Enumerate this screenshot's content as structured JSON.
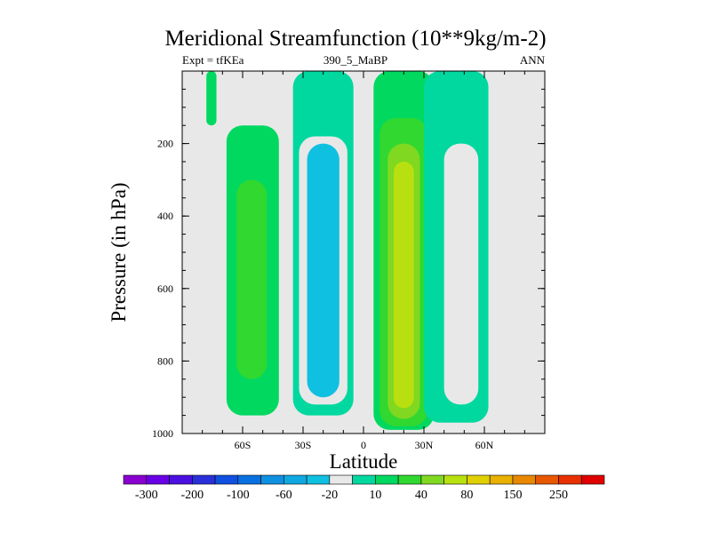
{
  "title": "Meridional Streamfunction (10**9kg/m-2)",
  "subtitle_left": "Expt = tfKEa",
  "subtitle_center": "390_5_MaBP",
  "subtitle_right": "ANN",
  "chart_data": {
    "type": "heatmap",
    "title": "Meridional Streamfunction (10**9kg/m-2)",
    "xlabel": "Latitude",
    "ylabel": "Pressure (in hPa)",
    "xlim": [
      -90,
      90
    ],
    "ylim": [
      1000,
      0
    ],
    "x_ticks": [
      {
        "value": -60,
        "label": "60S"
      },
      {
        "value": -30,
        "label": "30S"
      },
      {
        "value": 0,
        "label": "0"
      },
      {
        "value": 30,
        "label": "30N"
      },
      {
        "value": 60,
        "label": "60N"
      }
    ],
    "y_ticks": [
      {
        "value": 200,
        "label": "200"
      },
      {
        "value": 400,
        "label": "400"
      },
      {
        "value": 600,
        "label": "600"
      },
      {
        "value": 800,
        "label": "800"
      },
      {
        "value": 1000,
        "label": "1000"
      }
    ],
    "background_color": "#e8e8e8",
    "colorbar": {
      "levels": [
        "-300",
        "-250",
        "-200",
        "-150",
        "-100",
        "-80",
        "-60",
        "-40",
        "-20",
        "-10",
        "10",
        "20",
        "40",
        "60",
        "80",
        "100",
        "150",
        "200",
        "250",
        "300"
      ],
      "labels": [
        "-300",
        "-200",
        "-100",
        "-60",
        "-20",
        "10",
        "40",
        "80",
        "150",
        "250"
      ],
      "colors": [
        "#8a00d0",
        "#6a00e6",
        "#4a10e0",
        "#2a30d8",
        "#1050e0",
        "#0870e0",
        "#1090e0",
        "#10a8e0",
        "#10c0e0",
        "#e8e8e8",
        "#00d8a0",
        "#00d860",
        "#30d830",
        "#80d820",
        "#b8e010",
        "#e0d000",
        "#e8b000",
        "#e88800",
        "#e85800",
        "#e83000",
        "#e00000"
      ]
    },
    "regions": [
      {
        "name": "sh-polar-positive-upper",
        "band": "10",
        "lat": [
          -78,
          -73
        ],
        "p": [
          0,
          150
        ]
      },
      {
        "name": "sh-midlat-positive-cell",
        "band": "10",
        "lat": [
          -68,
          -42
        ],
        "p": [
          150,
          950
        ]
      },
      {
        "name": "sh-midlat-positive-core",
        "band": "20",
        "lat": [
          -63,
          -48
        ],
        "p": [
          300,
          850
        ]
      },
      {
        "name": "sh-hadley-negative-outer",
        "band": "-10",
        "lat": [
          -35,
          -5
        ],
        "p": [
          0,
          950
        ]
      },
      {
        "name": "sh-hadley-negative-mid",
        "band": "-20",
        "lat": [
          -32,
          -8
        ],
        "p": [
          180,
          920
        ]
      },
      {
        "name": "sh-hadley-negative-core",
        "band": "-40",
        "lat": [
          -28,
          -12
        ],
        "p": [
          200,
          900
        ]
      },
      {
        "name": "nh-hadley-positive-outer",
        "band": "10",
        "lat": [
          5,
          35
        ],
        "p": [
          0,
          990
        ]
      },
      {
        "name": "nh-hadley-positive-mid",
        "band": "20",
        "lat": [
          8,
          32
        ],
        "p": [
          130,
          980
        ]
      },
      {
        "name": "nh-hadley-positive-inner",
        "band": "40",
        "lat": [
          12,
          28
        ],
        "p": [
          200,
          960
        ]
      },
      {
        "name": "nh-hadley-positive-core",
        "band": "60",
        "lat": [
          15,
          25
        ],
        "p": [
          250,
          930
        ]
      },
      {
        "name": "nh-ferrel-negative-outer",
        "band": "-10",
        "lat": [
          30,
          62
        ],
        "p": [
          0,
          970
        ]
      },
      {
        "name": "nh-ferrel-negative-core",
        "band": "-20",
        "lat": [
          40,
          57
        ],
        "p": [
          200,
          920
        ]
      }
    ]
  }
}
